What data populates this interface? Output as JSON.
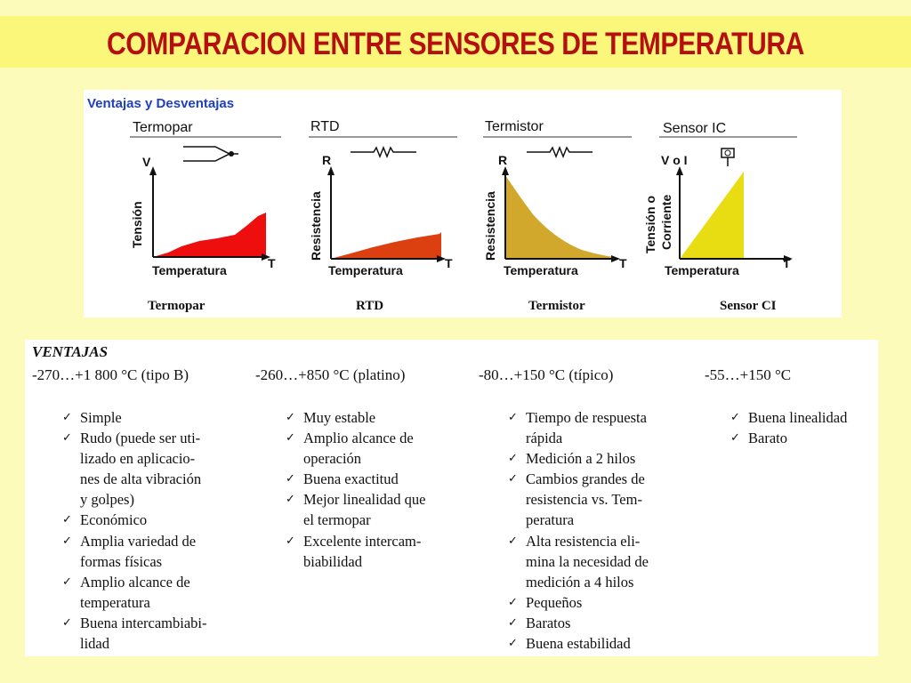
{
  "title": "COMPARACION ENTRE SENSORES DE TEMPERATURA",
  "figure": {
    "heading": "Ventajas y Desventajas",
    "sensors": [
      {
        "header": "Termopar",
        "y_symbol": "V",
        "y_axis": "Tensión",
        "x_axis": "Temperatura",
        "x_symbol": "T",
        "caption": "Termopar",
        "fill": "#ee0e0e",
        "curve": "rising"
      },
      {
        "header": "RTD",
        "y_symbol": "R",
        "y_axis": "Resistencia",
        "x_axis": "Temperatura",
        "x_symbol": "T",
        "caption": "RTD",
        "fill": "#dc3f10",
        "curve": "rising"
      },
      {
        "header": "Termistor",
        "y_symbol": "R",
        "y_axis": "Resistencia",
        "x_axis": "Temperatura",
        "x_symbol": "T",
        "caption": "Termistor",
        "fill": "#d1a72c",
        "curve": "falling"
      },
      {
        "header": "Sensor IC",
        "y_symbol": "V o I",
        "y_axis_1": "Tensión o",
        "y_axis_2": "Corriente",
        "x_axis": "Temperatura",
        "x_symbol": "T",
        "caption": "Sensor CI",
        "fill": "#e8dc12",
        "curve": "linear"
      }
    ]
  },
  "table": {
    "heading": "VENTAJAS",
    "columns": [
      {
        "range": "-270…+1 800 °C (tipo B)",
        "items": [
          [
            "Simple"
          ],
          [
            "Rudo (puede ser uti-",
            "lizado en aplicacio-",
            "nes de alta vibración",
            "y golpes)"
          ],
          [
            "Económico"
          ],
          [
            "Amplia variedad de",
            "formas físicas"
          ],
          [
            "Amplio alcance de",
            "temperatura"
          ],
          [
            "Buena intercambiabi-",
            "lidad"
          ]
        ]
      },
      {
        "range": "-260…+850 °C (platino)",
        "items": [
          [
            "Muy estable"
          ],
          [
            "Amplio alcance de",
            "operación"
          ],
          [
            "Buena exactitud"
          ],
          [
            "Mejor linealidad que",
            "el termopar"
          ],
          [
            "Excelente intercam-",
            "biabilidad"
          ]
        ]
      },
      {
        "range": "-80…+150 °C  (típico)",
        "items": [
          [
            "Tiempo de respuesta",
            "rápida"
          ],
          [
            "Medición a 2 hilos"
          ],
          [
            "Cambios grandes de",
            "resistencia vs. Tem-",
            "peratura"
          ],
          [
            "Alta resistencia eli-",
            "mina la necesidad de",
            "medición a 4 hilos"
          ],
          [
            "Pequeños"
          ],
          [
            "Baratos"
          ],
          [
            "Buena estabilidad"
          ]
        ]
      },
      {
        "range": "-55…+150 °C",
        "items": [
          [
            "Buena linealidad"
          ],
          [
            "Barato"
          ]
        ]
      }
    ]
  },
  "check_glyph": "✓",
  "colors": {
    "title": "#b50f12",
    "heading_blue": "#1f3fbf",
    "background": "#fdfbb9"
  }
}
